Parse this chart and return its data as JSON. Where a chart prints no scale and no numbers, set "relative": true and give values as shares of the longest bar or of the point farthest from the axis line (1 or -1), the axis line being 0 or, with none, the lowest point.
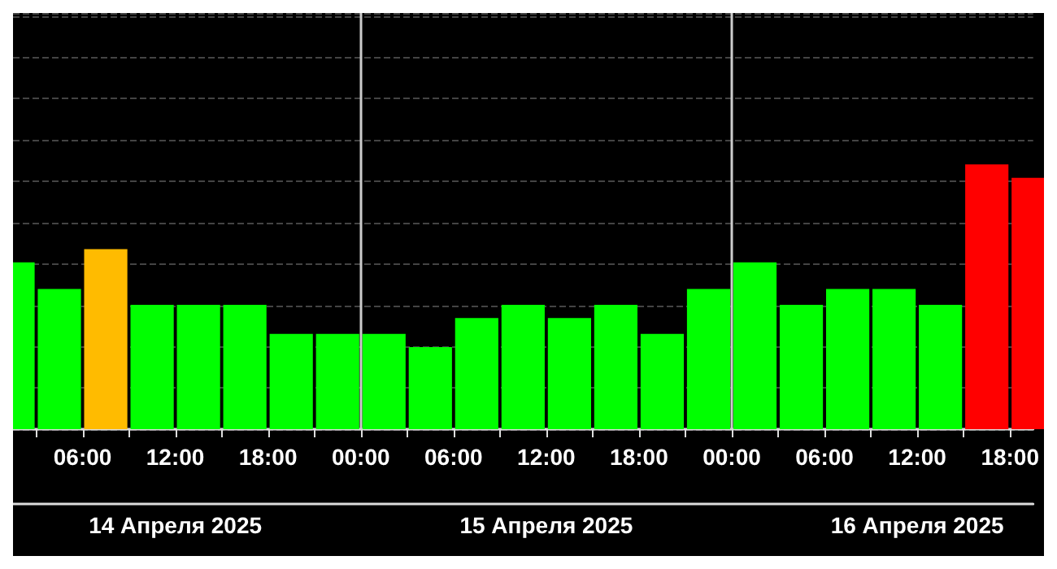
{
  "chart_data": {
    "type": "bar",
    "relative": true,
    "x": [
      "2025-04-14T01:30",
      "2025-04-14T04:30",
      "2025-04-14T07:30",
      "2025-04-14T10:30",
      "2025-04-14T13:30",
      "2025-04-14T16:30",
      "2025-04-14T19:30",
      "2025-04-14T22:30",
      "2025-04-15T01:30",
      "2025-04-15T04:30",
      "2025-04-15T07:30",
      "2025-04-15T10:30",
      "2025-04-15T13:30",
      "2025-04-15T16:30",
      "2025-04-15T19:30",
      "2025-04-15T22:30",
      "2025-04-16T01:30",
      "2025-04-16T04:30",
      "2025-04-16T07:30",
      "2025-04-16T10:30",
      "2025-04-16T13:30",
      "2025-04-16T16:30",
      "2025-04-16T19:30"
    ],
    "values": [
      0.63,
      0.53,
      0.68,
      0.47,
      0.47,
      0.47,
      0.36,
      0.36,
      0.36,
      0.31,
      0.42,
      0.47,
      0.42,
      0.47,
      0.36,
      0.53,
      0.63,
      0.47,
      0.53,
      0.53,
      0.47,
      1,
      0.95
    ],
    "colors": [
      "#00ff00",
      "#00ff00",
      "#ffbb00",
      "#00ff00",
      "#00ff00",
      "#00ff00",
      "#00ff00",
      "#00ff00",
      "#00ff00",
      "#00ff00",
      "#00ff00",
      "#00ff00",
      "#00ff00",
      "#00ff00",
      "#00ff00",
      "#00ff00",
      "#00ff00",
      "#00ff00",
      "#00ff00",
      "#00ff00",
      "#00ff00",
      "#ff0000",
      "#ff0000"
    ],
    "xlim": [
      "2025-04-14T01:30",
      "2025-04-16T19:30"
    ],
    "xticks": [
      {
        "value": "2025-04-14T03:00",
        "label": null
      },
      {
        "value": "2025-04-14T06:00",
        "label": "06:00"
      },
      {
        "value": "2025-04-14T09:00",
        "label": null
      },
      {
        "value": "2025-04-14T12:00",
        "label": "12:00"
      },
      {
        "value": "2025-04-14T15:00",
        "label": null
      },
      {
        "value": "2025-04-14T18:00",
        "label": "18:00"
      },
      {
        "value": "2025-04-14T21:00",
        "label": null
      },
      {
        "value": "2025-04-15T00:00",
        "label": "00:00"
      },
      {
        "value": "2025-04-15T03:00",
        "label": null
      },
      {
        "value": "2025-04-15T06:00",
        "label": "06:00"
      },
      {
        "value": "2025-04-15T09:00",
        "label": null
      },
      {
        "value": "2025-04-15T12:00",
        "label": "12:00"
      },
      {
        "value": "2025-04-15T15:00",
        "label": null
      },
      {
        "value": "2025-04-15T18:00",
        "label": "18:00"
      },
      {
        "value": "2025-04-15T21:00",
        "label": null
      },
      {
        "value": "2025-04-16T00:00",
        "label": "00:00"
      },
      {
        "value": "2025-04-16T03:00",
        "label": null
      },
      {
        "value": "2025-04-16T06:00",
        "label": "06:00"
      },
      {
        "value": "2025-04-16T09:00",
        "label": null
      },
      {
        "value": "2025-04-16T12:00",
        "label": "12:00"
      },
      {
        "value": "2025-04-16T15:00",
        "label": null
      },
      {
        "value": "2025-04-16T18:00",
        "label": "18:00"
      }
    ],
    "annotations": [
      "14 Апреля 2025",
      "15 Апреля 2025",
      "16 Апреля 2025"
    ],
    "ref_lines": [
      {
        "axis": "x",
        "value": "2025-04-15T00:00",
        "color": "#cccccc"
      },
      {
        "axis": "x",
        "value": "2025-04-16T00:00",
        "color": "#cccccc"
      }
    ],
    "grid": "y"
  }
}
